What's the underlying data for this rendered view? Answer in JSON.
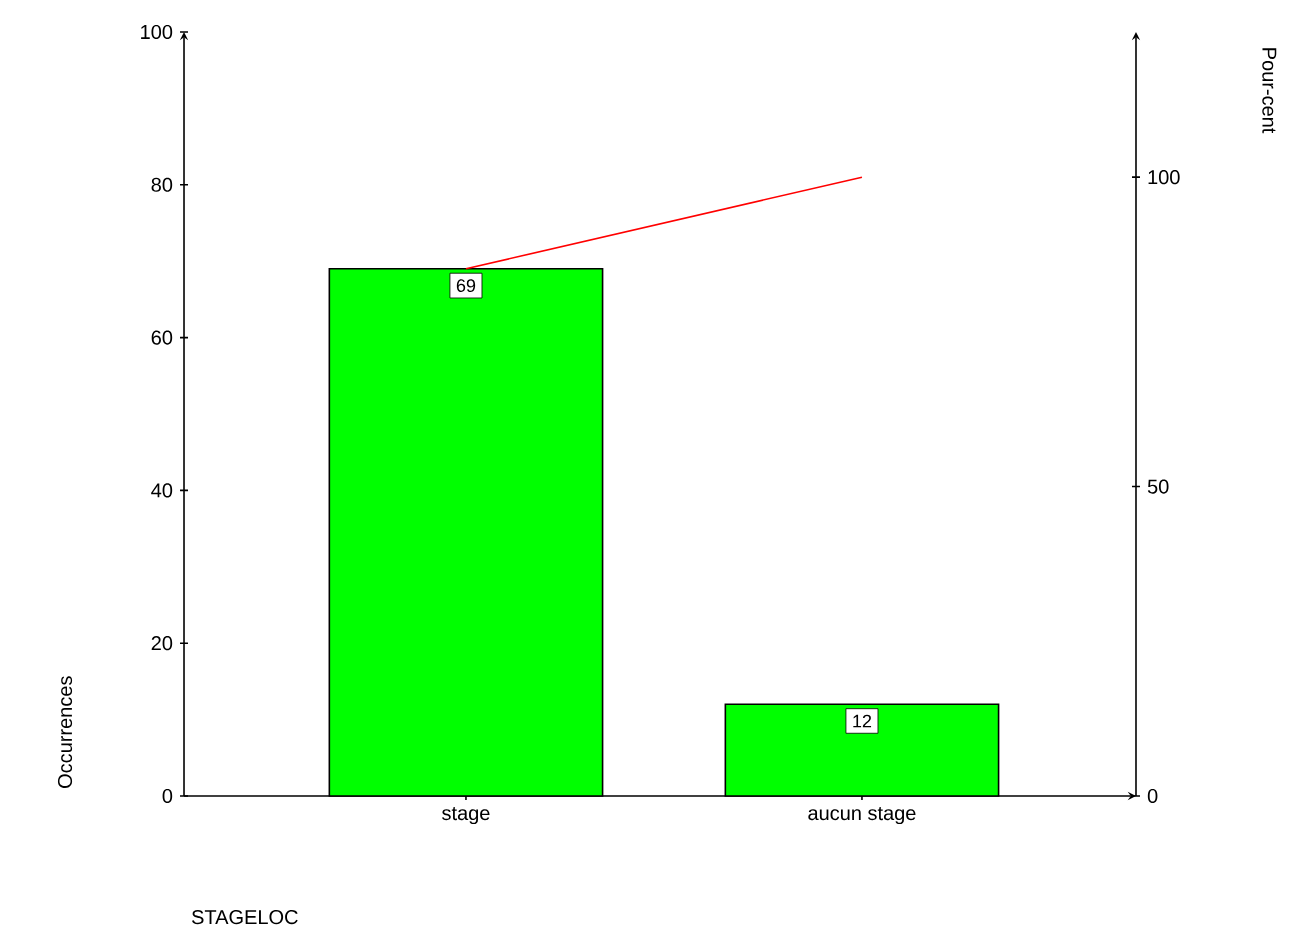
{
  "chart_data": {
    "type": "bar",
    "categories": [
      "stage",
      "aucun stage"
    ],
    "xlabel": "STAGELOC",
    "ylabel": "Occurrences",
    "y2label": "Pour-cent",
    "ylim": [
      0,
      100
    ],
    "yticks": [
      0,
      20,
      40,
      60,
      80,
      100
    ],
    "y2lim": [
      0,
      123.46
    ],
    "y2ticks": [
      0,
      50,
      100
    ],
    "grid": false,
    "series": [
      {
        "color": "#00ff00",
        "values": [
          69,
          12
        ],
        "value_labels": [
          "69",
          "12"
        ]
      },
      {
        "type": "line",
        "axis": "y2",
        "color": "#ff0000",
        "values": [
          85.2,
          100
        ]
      }
    ]
  }
}
